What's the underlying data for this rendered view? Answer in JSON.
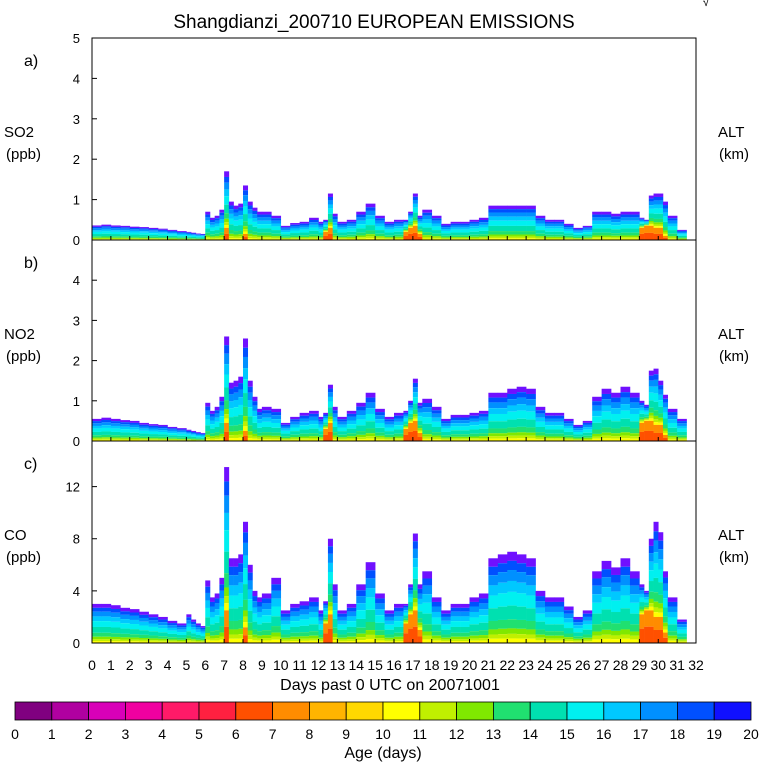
{
  "title": "Shangdianzi_200710 EUROPEAN EMISSIONS",
  "corner_mark": "√",
  "xlabel": "Days past 0 UTC on 20071001",
  "colorbar": {
    "label": "Age (days)",
    "ticks": [
      "0",
      "1",
      "2",
      "3",
      "4",
      "5",
      "6",
      "7",
      "8",
      "9",
      "10",
      "11",
      "12",
      "13",
      "14",
      "15",
      "16",
      "17",
      "18",
      "19",
      "20"
    ],
    "colors": [
      "#800080",
      "#b000a0",
      "#d800b8",
      "#f000a0",
      "#ff1a68",
      "#ff2040",
      "#ff5000",
      "#ff8c00",
      "#ffb400",
      "#ffd800",
      "#ffff00",
      "#c0f000",
      "#80e800",
      "#20e070",
      "#00e0b0",
      "#00f0f0",
      "#00c8ff",
      "#0090ff",
      "#0050ff",
      "#1010ff",
      "#7010ff"
    ]
  },
  "chart_data": [
    {
      "type": "area",
      "panel_label": "a)",
      "species": "SO2",
      "unit": "(ppb)",
      "right_label": "ALT",
      "right_unit": "(km)",
      "ylim": [
        0,
        5
      ],
      "yticks": [
        "0",
        "1",
        "2",
        "3",
        "4",
        "5"
      ],
      "x": [
        0,
        0.5,
        1,
        1.5,
        2,
        2.5,
        3,
        3.5,
        4,
        4.5,
        5,
        5.25,
        5.5,
        5.75,
        6,
        6.25,
        6.5,
        6.75,
        7,
        7.25,
        7.5,
        7.75,
        8,
        8.25,
        8.5,
        8.75,
        9,
        9.5,
        10,
        10.5,
        11,
        11.5,
        12,
        12.25,
        12.5,
        12.75,
        13,
        13.5,
        14,
        14.5,
        15,
        15.5,
        16,
        16.5,
        16.75,
        17,
        17.25,
        17.5,
        18,
        18.5,
        19,
        19.5,
        20,
        20.5,
        21,
        21.5,
        22,
        22.5,
        23,
        23.5,
        24,
        24.5,
        25,
        25.5,
        26,
        26.5,
        27,
        27.5,
        28,
        28.5,
        29,
        29.25,
        29.5,
        29.75,
        30,
        30.25,
        30.5,
        31
      ],
      "values": [
        0.36,
        0.38,
        0.36,
        0.35,
        0.33,
        0.32,
        0.3,
        0.28,
        0.25,
        0.22,
        0.2,
        0.18,
        0.16,
        0.15,
        0.7,
        0.55,
        0.6,
        0.75,
        1.7,
        0.95,
        0.85,
        0.9,
        1.35,
        0.95,
        0.8,
        0.7,
        0.7,
        0.6,
        0.35,
        0.42,
        0.45,
        0.55,
        0.45,
        0.5,
        1.15,
        0.65,
        0.45,
        0.5,
        0.7,
        0.9,
        0.6,
        0.45,
        0.5,
        0.5,
        0.7,
        1.15,
        0.6,
        0.75,
        0.6,
        0.4,
        0.45,
        0.45,
        0.5,
        0.55,
        0.85,
        0.85,
        0.85,
        0.85,
        0.85,
        0.6,
        0.5,
        0.5,
        0.4,
        0.3,
        0.35,
        0.7,
        0.7,
        0.65,
        0.7,
        0.7,
        0.55,
        0.5,
        1.1,
        1.15,
        1.15,
        0.95,
        0.6,
        0.25
      ],
      "young": [
        0,
        0,
        0,
        0,
        0,
        0,
        0,
        0,
        0,
        0,
        0,
        0,
        0,
        0,
        0,
        0,
        0,
        0,
        0.3,
        0,
        0,
        0,
        0.15,
        0,
        0,
        0,
        0,
        0,
        0,
        0,
        0,
        0,
        0,
        0.2,
        0.3,
        0,
        0,
        0,
        0,
        0,
        0,
        0,
        0,
        0.2,
        0.3,
        0.35,
        0.15,
        0,
        0,
        0,
        0,
        0,
        0,
        0,
        0,
        0,
        0,
        0,
        0,
        0,
        0,
        0,
        0,
        0,
        0,
        0,
        0,
        0,
        0,
        0,
        0.3,
        0.35,
        0.35,
        0.3,
        0.3,
        0.1,
        0,
        0
      ]
    },
    {
      "type": "area",
      "panel_label": "b)",
      "species": "NO2",
      "unit": "(ppb)",
      "right_label": "ALT",
      "right_unit": "(km)",
      "ylim": [
        0,
        5
      ],
      "yticks": [
        "0",
        "1",
        "2",
        "3",
        "4"
      ],
      "x": [
        0,
        0.5,
        1,
        1.5,
        2,
        2.5,
        3,
        3.5,
        4,
        4.5,
        5,
        5.25,
        5.5,
        5.75,
        6,
        6.25,
        6.5,
        6.75,
        7,
        7.25,
        7.5,
        7.75,
        8,
        8.25,
        8.5,
        8.75,
        9,
        9.5,
        10,
        10.5,
        11,
        11.5,
        12,
        12.25,
        12.5,
        12.75,
        13,
        13.5,
        14,
        14.5,
        15,
        15.5,
        16,
        16.5,
        16.75,
        17,
        17.25,
        17.5,
        18,
        18.5,
        19,
        19.5,
        20,
        20.5,
        21,
        21.5,
        22,
        22.5,
        23,
        23.5,
        24,
        24.5,
        25,
        25.5,
        26,
        26.5,
        27,
        27.5,
        28,
        28.5,
        29,
        29.25,
        29.5,
        29.75,
        30,
        30.25,
        30.5,
        31
      ],
      "values": [
        0.55,
        0.58,
        0.55,
        0.52,
        0.5,
        0.45,
        0.42,
        0.4,
        0.35,
        0.32,
        0.28,
        0.25,
        0.22,
        0.2,
        0.95,
        0.75,
        0.85,
        1.1,
        2.6,
        1.45,
        1.5,
        1.6,
        2.55,
        1.5,
        1.1,
        0.8,
        0.85,
        0.8,
        0.45,
        0.6,
        0.7,
        0.75,
        0.6,
        0.7,
        1.4,
        0.85,
        0.6,
        0.75,
        0.95,
        1.2,
        0.8,
        0.6,
        0.7,
        0.75,
        1.0,
        1.55,
        0.95,
        1.05,
        0.85,
        0.55,
        0.65,
        0.65,
        0.7,
        0.75,
        1.2,
        1.2,
        1.3,
        1.35,
        1.3,
        0.85,
        0.7,
        0.7,
        0.55,
        0.4,
        0.5,
        1.1,
        1.3,
        1.2,
        1.35,
        1.2,
        1.0,
        0.9,
        1.75,
        1.8,
        1.5,
        1.15,
        0.8,
        0.55
      ],
      "young": [
        0,
        0,
        0,
        0,
        0,
        0,
        0,
        0,
        0,
        0,
        0,
        0,
        0,
        0,
        0,
        0,
        0,
        0,
        0.45,
        0,
        0,
        0,
        0.25,
        0,
        0,
        0,
        0,
        0,
        0,
        0,
        0,
        0,
        0,
        0.3,
        0.45,
        0,
        0,
        0,
        0,
        0,
        0,
        0,
        0,
        0.3,
        0.45,
        0.5,
        0.2,
        0,
        0,
        0,
        0,
        0,
        0,
        0,
        0,
        0,
        0,
        0,
        0,
        0,
        0,
        0,
        0,
        0,
        0,
        0,
        0,
        0,
        0,
        0,
        0.45,
        0.5,
        0.5,
        0.4,
        0.4,
        0.15,
        0,
        0
      ]
    },
    {
      "type": "area",
      "panel_label": "c)",
      "species": "CO",
      "unit": "(ppb)",
      "right_label": "ALT",
      "right_unit": "(km)",
      "ylim": [
        0,
        15.5
      ],
      "yticks": [
        "0",
        "4",
        "8",
        "12"
      ],
      "ytick_values": [
        0,
        4,
        8,
        12
      ],
      "xlim": [
        0,
        32
      ],
      "xticks": [
        "0",
        "1",
        "2",
        "3",
        "4",
        "5",
        "6",
        "7",
        "8",
        "9",
        "10",
        "11",
        "12",
        "13",
        "14",
        "15",
        "16",
        "17",
        "18",
        "19",
        "20",
        "21",
        "22",
        "23",
        "24",
        "25",
        "26",
        "27",
        "28",
        "29",
        "30",
        "31",
        "32"
      ],
      "x": [
        0,
        0.5,
        1,
        1.5,
        2,
        2.5,
        3,
        3.5,
        4,
        4.5,
        5,
        5.25,
        5.5,
        5.75,
        6,
        6.25,
        6.5,
        6.75,
        7,
        7.25,
        7.5,
        7.75,
        8,
        8.25,
        8.5,
        8.75,
        9,
        9.5,
        10,
        10.5,
        11,
        11.5,
        12,
        12.25,
        12.5,
        12.75,
        13,
        13.5,
        14,
        14.5,
        15,
        15.5,
        16,
        16.5,
        16.75,
        17,
        17.25,
        17.5,
        18,
        18.5,
        19,
        19.5,
        20,
        20.5,
        21,
        21.5,
        22,
        22.5,
        23,
        23.5,
        24,
        24.5,
        25,
        25.5,
        26,
        26.5,
        27,
        27.5,
        28,
        28.5,
        29,
        29.25,
        29.5,
        29.75,
        30,
        30.25,
        30.5,
        31
      ],
      "values": [
        3.0,
        3.0,
        2.9,
        2.7,
        2.6,
        2.4,
        2.2,
        2.0,
        1.7,
        1.5,
        2.2,
        1.8,
        1.5,
        1.3,
        4.8,
        3.5,
        3.8,
        5.0,
        13.5,
        6.5,
        6.5,
        6.8,
        9.3,
        6.0,
        4.0,
        3.5,
        3.8,
        5.0,
        2.5,
        3.0,
        3.2,
        3.5,
        2.5,
        3.2,
        8.0,
        4.5,
        2.5,
        3.0,
        4.5,
        6.2,
        3.8,
        2.5,
        3.0,
        3.0,
        4.5,
        8.4,
        4.5,
        5.5,
        3.5,
        2.5,
        3.0,
        3.0,
        3.5,
        3.8,
        6.5,
        6.8,
        7.0,
        6.8,
        6.5,
        4.0,
        3.5,
        3.5,
        2.8,
        2.0,
        2.5,
        5.5,
        6.3,
        5.8,
        6.5,
        5.5,
        4.5,
        4.0,
        8.0,
        9.3,
        8.5,
        5.5,
        3.5,
        1.8
      ],
      "young": [
        0,
        0,
        0,
        0,
        0,
        0,
        0,
        0,
        0,
        0,
        0,
        0,
        0,
        0,
        0,
        0,
        0,
        0,
        2.5,
        0,
        0,
        0,
        1.2,
        0,
        0,
        0,
        0,
        0,
        0,
        0,
        0,
        0,
        0,
        1.5,
        2.2,
        0,
        0,
        0,
        0,
        0,
        0,
        0,
        0,
        1.5,
        2.2,
        2.5,
        1.0,
        0,
        0,
        0,
        0,
        0,
        0,
        0,
        0,
        0,
        0,
        0,
        0,
        0,
        0,
        0,
        0,
        0,
        0,
        0,
        0,
        0,
        0,
        0,
        2.2,
        2.5,
        2.5,
        2.0,
        2.0,
        0.8,
        0,
        0
      ]
    }
  ]
}
